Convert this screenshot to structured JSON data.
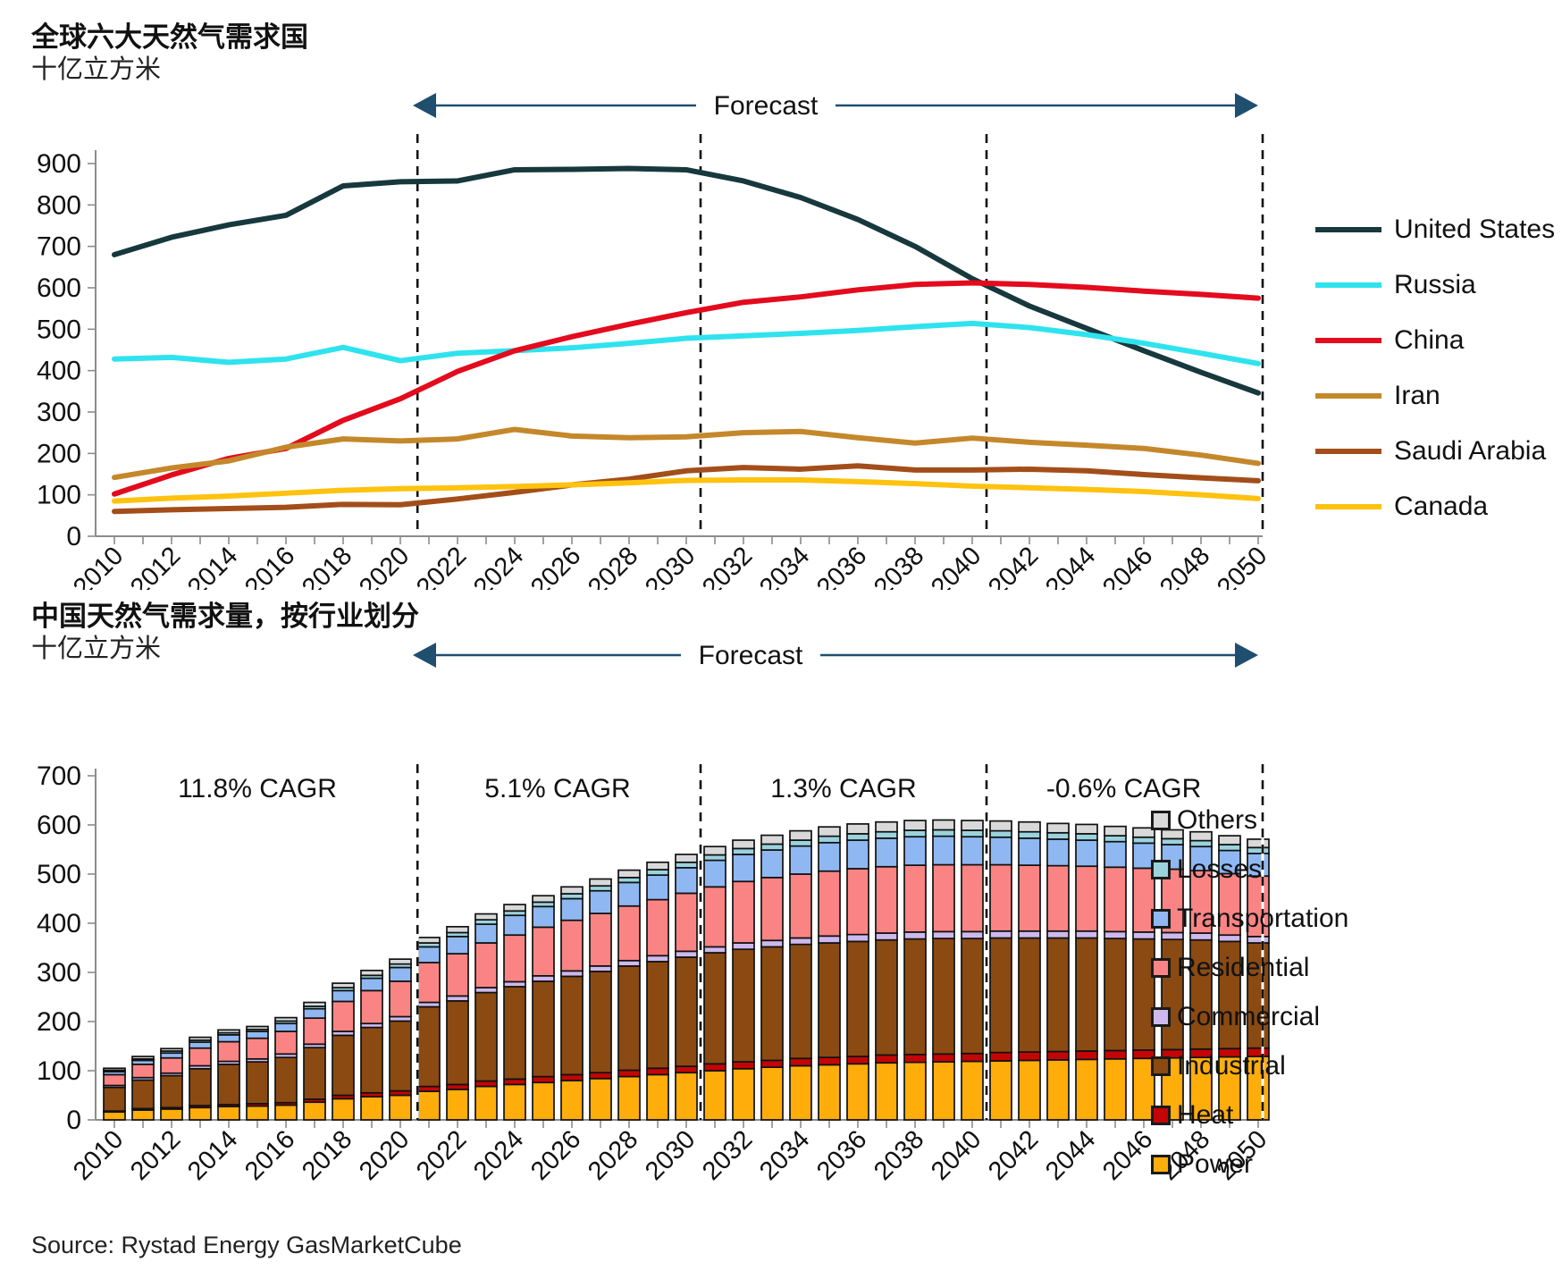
{
  "source_note": "Source: Rystad Energy GasMarketCube",
  "chart_data": [
    {
      "type": "line",
      "title": "全球六大天然气需求国",
      "unit_label": "十亿立方米",
      "forecast_label": "Forecast",
      "x_start": 2010,
      "x_end": 2050,
      "point_step_years": 2,
      "xtick_label_step": 2,
      "ylim": [
        0,
        900
      ],
      "ytick_step": 100,
      "grid": false,
      "legend_position": "right",
      "dashed_boundaries": [
        2020.6,
        2030.5,
        2040.5,
        2050.2
      ],
      "series": [
        {
          "name": "United States",
          "color": "#17383d",
          "values": [
            680,
            722,
            752,
            775,
            846,
            856,
            858,
            885,
            886,
            888,
            885,
            858,
            818,
            765,
            700,
            622,
            556,
            502,
            448,
            396,
            346
          ]
        },
        {
          "name": "Russia",
          "color": "#2fe3ee",
          "values": [
            428,
            432,
            420,
            428,
            456,
            424,
            442,
            448,
            455,
            466,
            478,
            484,
            490,
            497,
            506,
            514,
            504,
            487,
            466,
            442,
            417
          ]
        },
        {
          "name": "China",
          "color": "#e30b1d",
          "values": [
            102,
            148,
            188,
            212,
            280,
            332,
            398,
            448,
            482,
            512,
            540,
            565,
            578,
            595,
            608,
            612,
            608,
            601,
            592,
            584,
            575
          ]
        },
        {
          "name": "Iran",
          "color": "#c4882b",
          "values": [
            142,
            165,
            182,
            215,
            235,
            230,
            235,
            258,
            242,
            238,
            240,
            250,
            253,
            238,
            225,
            237,
            227,
            220,
            212,
            196,
            176
          ]
        },
        {
          "name": "Saudi Arabia",
          "color": "#a34e1a",
          "values": [
            60,
            64,
            67,
            70,
            77,
            76,
            90,
            106,
            124,
            138,
            158,
            166,
            162,
            170,
            160,
            160,
            162,
            158,
            149,
            141,
            134
          ]
        },
        {
          "name": "Canada",
          "color": "#ffc20e",
          "values": [
            85,
            92,
            97,
            104,
            111,
            115,
            117,
            120,
            124,
            129,
            135,
            136,
            136,
            132,
            127,
            121,
            117,
            113,
            108,
            100,
            91
          ]
        }
      ]
    },
    {
      "type": "stacked-bar",
      "title": "中国天然气需求量，按行业划分",
      "unit_label": "十亿立方米",
      "forecast_label": "Forecast",
      "x_start": 2010,
      "x_end": 2050,
      "xtick_label_step": 2,
      "ylim": [
        0,
        700
      ],
      "ytick_step": 100,
      "grid": false,
      "legend_position": "right",
      "dashed_boundaries": [
        2020.6,
        2030.5,
        2040.5,
        2050.2
      ],
      "cagr_labels": [
        {
          "text": "11.8% CAGR",
          "center_year": 2015.0
        },
        {
          "text": "5.1% CAGR",
          "center_year": 2025.5
        },
        {
          "text": "1.3% CAGR",
          "center_year": 2035.5
        },
        {
          "text": "-0.6% CAGR",
          "center_year": 2045.3
        }
      ],
      "legend_order": [
        "Others",
        "Losses",
        "Transportation",
        "Residential",
        "Commercial",
        "Industrial",
        "Heat",
        "Power"
      ],
      "series": [
        {
          "name": "Power",
          "color": "#ffad0a",
          "values": [
            16,
            20,
            22,
            25,
            27,
            28,
            30,
            36,
            43,
            47,
            50,
            58,
            62,
            68,
            72,
            76,
            80,
            84,
            88,
            92,
            96,
            100,
            104,
            107,
            110,
            112,
            114,
            116,
            117,
            118,
            119,
            120,
            121,
            122,
            123,
            124,
            125,
            126,
            127,
            128,
            129
          ]
        },
        {
          "name": "Heat",
          "color": "#c40505",
          "values": [
            2,
            3,
            3,
            4,
            4,
            5,
            5,
            6,
            7,
            8,
            9,
            10,
            10,
            11,
            11,
            12,
            12,
            12,
            13,
            13,
            13,
            14,
            14,
            14,
            15,
            15,
            15,
            16,
            16,
            16,
            16,
            17,
            17,
            17,
            17,
            17,
            17,
            17,
            17,
            17,
            17
          ]
        },
        {
          "name": "Industrial",
          "color": "#8a4a12",
          "values": [
            48,
            58,
            65,
            75,
            82,
            85,
            92,
            105,
            122,
            133,
            142,
            162,
            170,
            180,
            188,
            194,
            200,
            206,
            212,
            217,
            222,
            226,
            229,
            231,
            232,
            233,
            234,
            234,
            235,
            235,
            234,
            233,
            232,
            231,
            230,
            228,
            226,
            224,
            222,
            218,
            214
          ]
        },
        {
          "name": "Commercial",
          "color": "#cdb9ed",
          "values": [
            4,
            5,
            5,
            6,
            6,
            6,
            7,
            7,
            8,
            8,
            9,
            9,
            10,
            10,
            10,
            11,
            11,
            11,
            11,
            12,
            12,
            12,
            13,
            13,
            13,
            14,
            14,
            14,
            14,
            14,
            14,
            14,
            14,
            14,
            14,
            14,
            14,
            14,
            14,
            13,
            13
          ]
        },
        {
          "name": "Residential",
          "color": "#fa8484",
          "values": [
            22,
            27,
            31,
            36,
            40,
            42,
            46,
            53,
            61,
            67,
            72,
            81,
            86,
            91,
            95,
            99,
            103,
            107,
            111,
            114,
            118,
            122,
            125,
            128,
            130,
            132,
            134,
            135,
            136,
            136,
            136,
            135,
            134,
            133,
            132,
            131,
            130,
            129,
            127,
            125,
            123
          ]
        },
        {
          "name": "Transportation",
          "color": "#8fb8f2",
          "values": [
            6,
            8,
            10,
            12,
            14,
            14,
            16,
            19,
            22,
            25,
            28,
            32,
            35,
            38,
            40,
            42,
            44,
            46,
            48,
            50,
            52,
            54,
            55,
            56,
            57,
            58,
            58,
            58,
            58,
            58,
            57,
            56,
            55,
            54,
            53,
            52,
            51,
            50,
            49,
            47,
            46
          ]
        },
        {
          "name": "Losses",
          "color": "#9ad3dd",
          "values": [
            3,
            3,
            4,
            4,
            4,
            4,
            5,
            5,
            6,
            6,
            7,
            8,
            8,
            9,
            9,
            9,
            10,
            10,
            10,
            11,
            11,
            11,
            12,
            12,
            12,
            13,
            13,
            13,
            13,
            13,
            13,
            13,
            13,
            13,
            13,
            12,
            12,
            12,
            12,
            12,
            12
          ]
        },
        {
          "name": "Others",
          "color": "#d9d9d9",
          "values": [
            4,
            5,
            5,
            6,
            6,
            6,
            7,
            8,
            9,
            10,
            10,
            11,
            12,
            12,
            13,
            13,
            14,
            14,
            15,
            15,
            16,
            17,
            17,
            18,
            19,
            19,
            20,
            20,
            20,
            20,
            20,
            20,
            20,
            19,
            19,
            19,
            19,
            18,
            18,
            18,
            17
          ]
        }
      ]
    }
  ]
}
